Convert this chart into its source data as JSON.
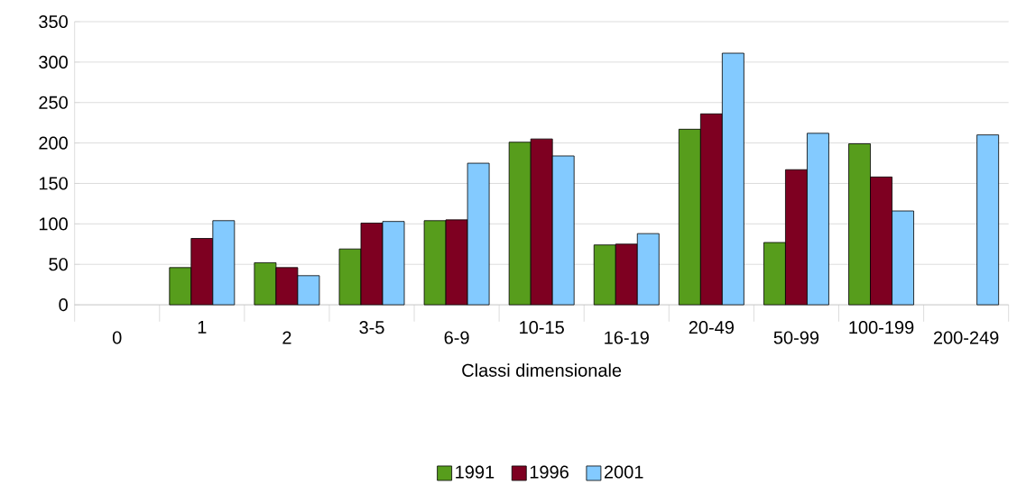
{
  "chart_data": {
    "type": "bar",
    "xlabel": "Classi dimensionale",
    "categories": [
      "0",
      "1",
      "2",
      "3-5",
      "6-9",
      "10-15",
      "16-19",
      "20-49",
      "50-99",
      "100-199",
      "200-249"
    ],
    "series": [
      {
        "name": "1991",
        "color": "#579d1c",
        "values": [
          null,
          46,
          52,
          69,
          104,
          201,
          74,
          217,
          77,
          199,
          null
        ]
      },
      {
        "name": "1996",
        "color": "#7e0021",
        "values": [
          null,
          82,
          46,
          101,
          105,
          205,
          75,
          236,
          167,
          158,
          null
        ]
      },
      {
        "name": "2001",
        "color": "#83caff",
        "values": [
          null,
          104,
          36,
          103,
          175,
          184,
          88,
          311,
          212,
          116,
          210
        ]
      }
    ],
    "ylim": [
      0,
      350
    ],
    "yticks": [
      0,
      50,
      100,
      150,
      200,
      250,
      300,
      350
    ],
    "grid": "y",
    "legend": "bottom"
  }
}
